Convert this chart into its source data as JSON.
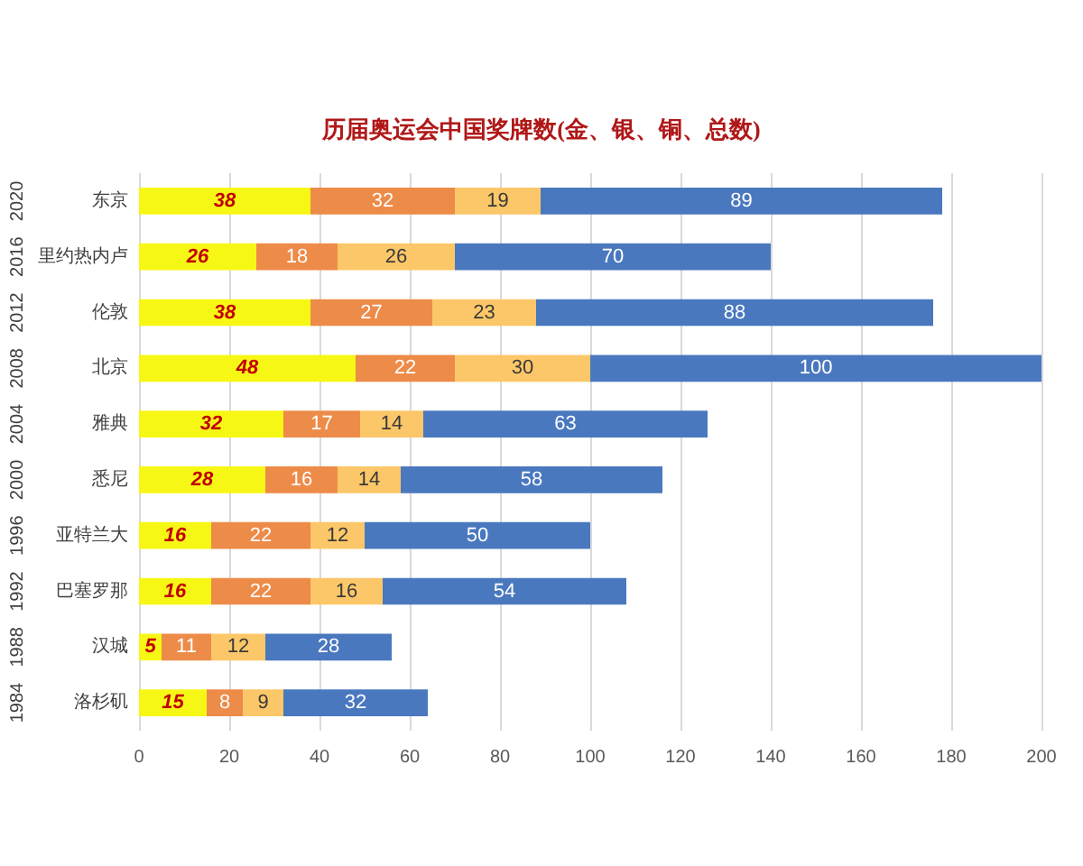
{
  "chart_data": {
    "type": "bar",
    "orientation": "horizontal",
    "stacked": true,
    "title": "历届奥运会中国奖牌数(金、银、铜、总数)",
    "categories": [
      "东京 2020",
      "里约热内卢 2016",
      "伦敦 2012",
      "北京 2008",
      "雅典 2004",
      "悉尼 2000",
      "亚特兰大 1996",
      "巴塞罗那 1992",
      "汉城 1988",
      "洛杉矶 1984"
    ],
    "series": [
      {
        "color": "#f7f716",
        "values": [
          38,
          26,
          38,
          48,
          32,
          28,
          16,
          16,
          5,
          15
        ]
      },
      {
        "color": "#ed8b48",
        "values": [
          32,
          18,
          27,
          22,
          17,
          16,
          22,
          22,
          11,
          8
        ]
      },
      {
        "color": "#fcc768",
        "values": [
          19,
          26,
          23,
          30,
          14,
          14,
          12,
          16,
          12,
          9
        ]
      },
      {
        "color": "#4a78bf",
        "values": [
          89,
          70,
          88,
          100,
          63,
          58,
          50,
          54,
          28,
          32
        ]
      }
    ],
    "xlim": [
      0,
      200
    ],
    "xticks": [
      0,
      20,
      40,
      60,
      80,
      100,
      120,
      140,
      160,
      180,
      200
    ],
    "grid": "x",
    "data_labels": true
  }
}
